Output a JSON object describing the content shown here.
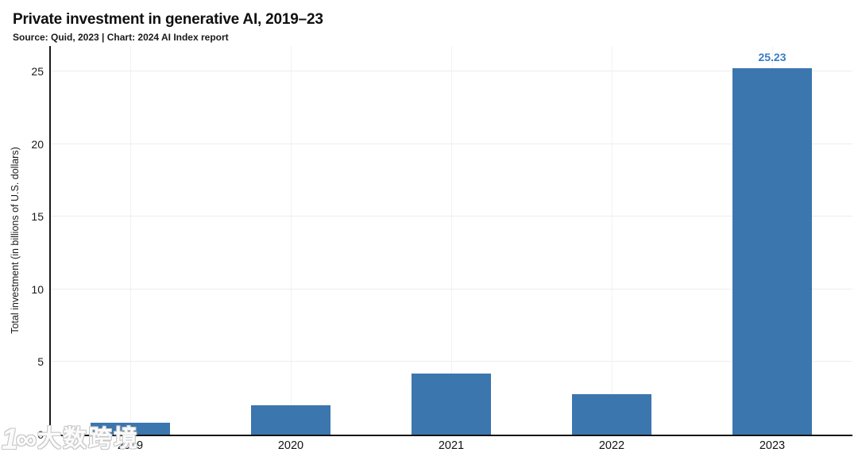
{
  "header": {
    "title": "Private investment in generative AI, 2019–23",
    "subtitle": "Source: Quid, 2023 | Chart: 2024 AI Index report"
  },
  "chart_data": {
    "type": "bar",
    "title": "Private investment in generative AI, 2019–23",
    "source": "Source: Quid, 2023 | Chart: 2024 AI Index report",
    "categories": [
      "2019",
      "2020",
      "2021",
      "2022",
      "2023"
    ],
    "values": [
      0.8,
      2.0,
      4.2,
      2.8,
      25.23
    ],
    "bar_value_labels": [
      "",
      "",
      "",
      "",
      "25.23"
    ],
    "xlabel": "",
    "ylabel": "Total investment (in billions of U.S. dollars)",
    "ylim": [
      0,
      26.75
    ],
    "yticks": [
      0,
      5,
      10,
      15,
      20,
      25
    ],
    "grid": true,
    "legend": "none",
    "bar_color": "#3B76AF",
    "value_label_color": "#3A7CC4",
    "axis_color": "#1a1a1a"
  },
  "watermark": {
    "logo": "1∞",
    "text": "大数跨境"
  }
}
